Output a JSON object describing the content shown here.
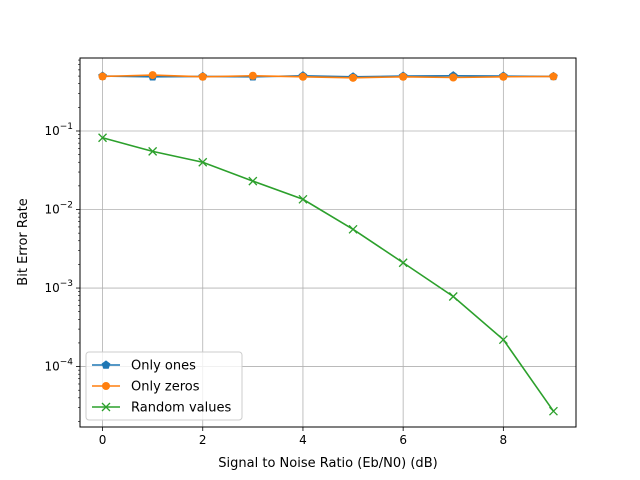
{
  "chart_data": {
    "type": "line",
    "title": "",
    "xlabel": "Signal to Noise Ratio (Eb/N0) (dB)",
    "ylabel": "Bit Error Rate",
    "yscale": "log",
    "xlim": [
      -0.45,
      9.45
    ],
    "ylim": [
      1.7e-05,
      0.85
    ],
    "grid": true,
    "legend_position": "lower-left",
    "x": [
      0,
      1,
      2,
      3,
      4,
      5,
      6,
      7,
      8,
      9
    ],
    "x_ticks": [
      "0",
      "2",
      "4",
      "6",
      "8"
    ],
    "y_ticks": [
      {
        "base": "10",
        "exp": "−1"
      },
      {
        "base": "10",
        "exp": "−2"
      },
      {
        "base": "10",
        "exp": "−3"
      },
      {
        "base": "10",
        "exp": "−4"
      }
    ],
    "series": [
      {
        "name": "Only ones",
        "color": "#1f77b4",
        "marker": "pentagon",
        "values": [
          0.5,
          0.49,
          0.495,
          0.49,
          0.505,
          0.49,
          0.5,
          0.505,
          0.5,
          0.495
        ]
      },
      {
        "name": "Only zeros",
        "color": "#ff7f0e",
        "marker": "circle",
        "values": [
          0.495,
          0.515,
          0.49,
          0.505,
          0.49,
          0.475,
          0.49,
          0.48,
          0.49,
          0.495
        ]
      },
      {
        "name": "Random values",
        "color": "#2ca02c",
        "marker": "x",
        "values": [
          0.082,
          0.055,
          0.04,
          0.023,
          0.0135,
          0.0056,
          0.0021,
          0.00078,
          0.00022,
          2.7e-05
        ]
      }
    ]
  }
}
